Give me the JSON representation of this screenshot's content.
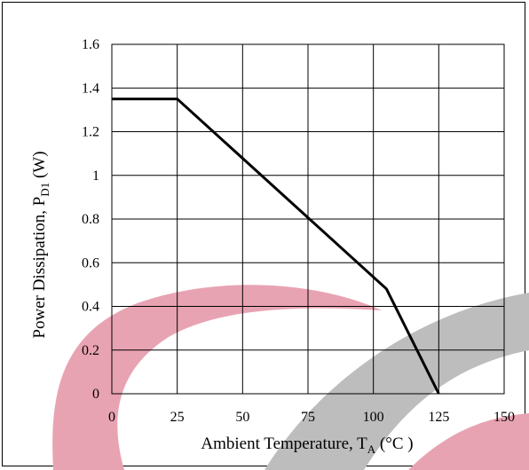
{
  "chart_data": {
    "type": "line",
    "title": "",
    "xlabel": {
      "main": "Ambient Temperature, T",
      "subscript": "A",
      "unit": " (°C )"
    },
    "ylabel": {
      "main": "Power Dissipation, P",
      "subscript": "D1",
      "unit": " (W)"
    },
    "xlim": [
      0,
      150
    ],
    "ylim": [
      0,
      1.6
    ],
    "xticks": [
      0,
      25,
      50,
      75,
      100,
      125,
      150
    ],
    "yticks": [
      0,
      0.2,
      0.4,
      0.6,
      0.8,
      1,
      1.2,
      1.4,
      1.6
    ],
    "xtick_labels": [
      "0",
      "25",
      "50",
      "75",
      "100",
      "125",
      "150"
    ],
    "ytick_labels": [
      "0",
      "0.2",
      "0.4",
      "0.6",
      "0.8",
      "1",
      "1.2",
      "1.4",
      "1.6"
    ],
    "grid": true,
    "series": [
      {
        "color": "#000000",
        "x": [
          0,
          25,
          105,
          125
        ],
        "y": [
          1.35,
          1.35,
          0.48,
          0
        ]
      }
    ]
  },
  "watermark": {
    "colors": {
      "pink": "#e8a3b2",
      "gray": "#bdbdbd"
    }
  }
}
